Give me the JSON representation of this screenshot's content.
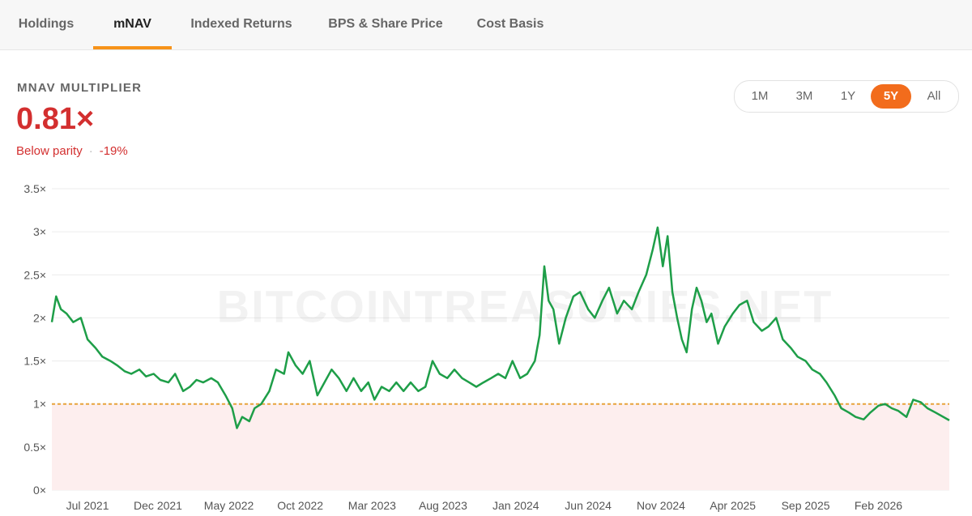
{
  "tabs": [
    {
      "label": "Holdings",
      "active": false
    },
    {
      "label": "mNAV",
      "active": true
    },
    {
      "label": "Indexed Returns",
      "active": false
    },
    {
      "label": "BPS & Share Price",
      "active": false
    },
    {
      "label": "Cost Basis",
      "active": false
    }
  ],
  "metric": {
    "label": "MNAV MULTIPLIER",
    "value": "0.81×",
    "status": "Below parity",
    "separator": "·",
    "change": "-19%"
  },
  "ranges": [
    {
      "label": "1M",
      "active": false
    },
    {
      "label": "3M",
      "active": false
    },
    {
      "label": "1Y",
      "active": false
    },
    {
      "label": "5Y",
      "active": true
    },
    {
      "label": "All",
      "active": false
    }
  ],
  "watermark": "BITCOINTREASURIES.NET",
  "colors": {
    "accent": "#f7931a",
    "active_range": "#f26c1c",
    "negative": "#d32f2f",
    "line": "#1e9e48",
    "parity_line": "#e8a33c",
    "below_parity_fill": "#fdeeee"
  },
  "chart_data": {
    "type": "line",
    "title": "",
    "xlabel": "",
    "ylabel": "",
    "ylim": [
      0,
      3.5
    ],
    "yticks": [
      {
        "value": 0,
        "label": "0×"
      },
      {
        "value": 0.5,
        "label": "0.5×"
      },
      {
        "value": 1,
        "label": "1×"
      },
      {
        "value": 1.5,
        "label": "1.5×"
      },
      {
        "value": 2,
        "label": "2×"
      },
      {
        "value": 2.5,
        "label": "2.5×"
      },
      {
        "value": 3,
        "label": "3×"
      },
      {
        "value": 3.5,
        "label": "3.5×"
      }
    ],
    "xlim": [
      "2021-05-01",
      "2026-06-30"
    ],
    "xticks": [
      {
        "date": "2021-07-15",
        "label": "Jul 2021"
      },
      {
        "date": "2021-12-10",
        "label": "Dec 2021"
      },
      {
        "date": "2022-05-08",
        "label": "May 2022"
      },
      {
        "date": "2022-10-05",
        "label": "Oct 2022"
      },
      {
        "date": "2023-03-05",
        "label": "Mar 2023"
      },
      {
        "date": "2023-08-01",
        "label": "Aug 2023"
      },
      {
        "date": "2024-01-01",
        "label": "Jan 2024"
      },
      {
        "date": "2024-06-01",
        "label": "Jun 2024"
      },
      {
        "date": "2024-11-01",
        "label": "Nov 2024"
      },
      {
        "date": "2025-04-01",
        "label": "Apr 2025"
      },
      {
        "date": "2025-09-01",
        "label": "Sep 2025"
      },
      {
        "date": "2026-02-01",
        "label": "Feb 2026"
      }
    ],
    "grid": true,
    "parity": 1,
    "series": [
      {
        "points": [
          [
            "2021-05-01",
            1.95
          ],
          [
            "2021-05-10",
            2.25
          ],
          [
            "2021-05-20",
            2.1
          ],
          [
            "2021-06-01",
            2.05
          ],
          [
            "2021-06-15",
            1.95
          ],
          [
            "2021-07-01",
            2.0
          ],
          [
            "2021-07-15",
            1.75
          ],
          [
            "2021-08-01",
            1.65
          ],
          [
            "2021-08-15",
            1.55
          ],
          [
            "2021-09-01",
            1.5
          ],
          [
            "2021-09-15",
            1.45
          ],
          [
            "2021-10-01",
            1.38
          ],
          [
            "2021-10-15",
            1.35
          ],
          [
            "2021-11-01",
            1.4
          ],
          [
            "2021-11-15",
            1.32
          ],
          [
            "2021-12-01",
            1.35
          ],
          [
            "2021-12-15",
            1.28
          ],
          [
            "2022-01-01",
            1.25
          ],
          [
            "2022-01-15",
            1.35
          ],
          [
            "2022-02-01",
            1.15
          ],
          [
            "2022-02-15",
            1.2
          ],
          [
            "2022-03-01",
            1.28
          ],
          [
            "2022-03-15",
            1.25
          ],
          [
            "2022-04-01",
            1.3
          ],
          [
            "2022-04-15",
            1.25
          ],
          [
            "2022-05-01",
            1.1
          ],
          [
            "2022-05-15",
            0.95
          ],
          [
            "2022-05-25",
            0.72
          ],
          [
            "2022-06-05",
            0.85
          ],
          [
            "2022-06-20",
            0.8
          ],
          [
            "2022-07-01",
            0.95
          ],
          [
            "2022-07-15",
            1.0
          ],
          [
            "2022-08-01",
            1.15
          ],
          [
            "2022-08-15",
            1.4
          ],
          [
            "2022-09-01",
            1.35
          ],
          [
            "2022-09-10",
            1.6
          ],
          [
            "2022-09-25",
            1.45
          ],
          [
            "2022-10-10",
            1.35
          ],
          [
            "2022-10-25",
            1.5
          ],
          [
            "2022-11-10",
            1.1
          ],
          [
            "2022-11-25",
            1.25
          ],
          [
            "2022-12-10",
            1.4
          ],
          [
            "2022-12-25",
            1.3
          ],
          [
            "2023-01-10",
            1.15
          ],
          [
            "2023-01-25",
            1.3
          ],
          [
            "2023-02-10",
            1.15
          ],
          [
            "2023-02-25",
            1.25
          ],
          [
            "2023-03-10",
            1.05
          ],
          [
            "2023-03-25",
            1.2
          ],
          [
            "2023-04-10",
            1.15
          ],
          [
            "2023-04-25",
            1.25
          ],
          [
            "2023-05-10",
            1.15
          ],
          [
            "2023-05-25",
            1.25
          ],
          [
            "2023-06-10",
            1.15
          ],
          [
            "2023-06-25",
            1.2
          ],
          [
            "2023-07-10",
            1.5
          ],
          [
            "2023-07-25",
            1.35
          ],
          [
            "2023-08-10",
            1.3
          ],
          [
            "2023-08-25",
            1.4
          ],
          [
            "2023-09-10",
            1.3
          ],
          [
            "2023-09-25",
            1.25
          ],
          [
            "2023-10-10",
            1.2
          ],
          [
            "2023-10-25",
            1.25
          ],
          [
            "2023-11-10",
            1.3
          ],
          [
            "2023-11-25",
            1.35
          ],
          [
            "2023-12-10",
            1.3
          ],
          [
            "2023-12-25",
            1.5
          ],
          [
            "2024-01-10",
            1.3
          ],
          [
            "2024-01-25",
            1.35
          ],
          [
            "2024-02-10",
            1.5
          ],
          [
            "2024-02-20",
            1.8
          ],
          [
            "2024-03-01",
            2.6
          ],
          [
            "2024-03-10",
            2.2
          ],
          [
            "2024-03-20",
            2.1
          ],
          [
            "2024-04-01",
            1.7
          ],
          [
            "2024-04-15",
            2.0
          ],
          [
            "2024-05-01",
            2.25
          ],
          [
            "2024-05-15",
            2.3
          ],
          [
            "2024-06-01",
            2.1
          ],
          [
            "2024-06-15",
            2.0
          ],
          [
            "2024-07-01",
            2.2
          ],
          [
            "2024-07-15",
            2.35
          ],
          [
            "2024-08-01",
            2.05
          ],
          [
            "2024-08-15",
            2.2
          ],
          [
            "2024-09-01",
            2.1
          ],
          [
            "2024-09-15",
            2.3
          ],
          [
            "2024-10-01",
            2.5
          ],
          [
            "2024-10-15",
            2.8
          ],
          [
            "2024-10-25",
            3.05
          ],
          [
            "2024-11-05",
            2.6
          ],
          [
            "2024-11-15",
            2.95
          ],
          [
            "2024-11-25",
            2.3
          ],
          [
            "2024-12-05",
            2.0
          ],
          [
            "2024-12-15",
            1.75
          ],
          [
            "2024-12-25",
            1.6
          ],
          [
            "2025-01-05",
            2.1
          ],
          [
            "2025-01-15",
            2.35
          ],
          [
            "2025-01-25",
            2.2
          ],
          [
            "2025-02-05",
            1.95
          ],
          [
            "2025-02-15",
            2.05
          ],
          [
            "2025-03-01",
            1.7
          ],
          [
            "2025-03-15",
            1.9
          ],
          [
            "2025-04-01",
            2.05
          ],
          [
            "2025-04-15",
            2.15
          ],
          [
            "2025-05-01",
            2.2
          ],
          [
            "2025-05-15",
            1.95
          ],
          [
            "2025-06-01",
            1.85
          ],
          [
            "2025-06-15",
            1.9
          ],
          [
            "2025-07-01",
            2.0
          ],
          [
            "2025-07-15",
            1.75
          ],
          [
            "2025-08-01",
            1.65
          ],
          [
            "2025-08-15",
            1.55
          ],
          [
            "2025-09-01",
            1.5
          ],
          [
            "2025-09-15",
            1.4
          ],
          [
            "2025-10-01",
            1.35
          ],
          [
            "2025-10-15",
            1.25
          ],
          [
            "2025-11-01",
            1.1
          ],
          [
            "2025-11-15",
            0.95
          ],
          [
            "2025-12-01",
            0.9
          ],
          [
            "2025-12-15",
            0.85
          ],
          [
            "2026-01-01",
            0.82
          ],
          [
            "2026-01-15",
            0.9
          ],
          [
            "2026-02-01",
            0.98
          ],
          [
            "2026-02-15",
            1.0
          ],
          [
            "2026-03-01",
            0.95
          ],
          [
            "2026-03-15",
            0.92
          ],
          [
            "2026-04-01",
            0.85
          ],
          [
            "2026-04-15",
            1.05
          ],
          [
            "2026-05-01",
            1.02
          ],
          [
            "2026-05-15",
            0.95
          ],
          [
            "2026-06-01",
            0.9
          ],
          [
            "2026-06-30",
            0.81
          ]
        ]
      }
    ]
  }
}
